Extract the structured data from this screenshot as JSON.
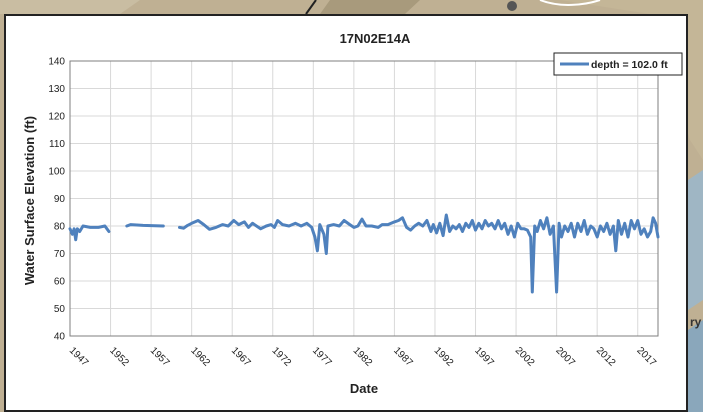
{
  "map_labels": {
    "right_fragment": "ry"
  },
  "chart_data": {
    "type": "line",
    "title": "17N02E14A",
    "xlabel": "Date",
    "ylabel": "Water Surface Elevation (ft)",
    "ylim": [
      40,
      140
    ],
    "y_ticks": [
      "40",
      "50",
      "60",
      "70",
      "80",
      "90",
      "100",
      "110",
      "120",
      "130",
      "140"
    ],
    "xlim": [
      1947,
      2019.5
    ],
    "x_ticks": [
      "1947",
      "1952",
      "1957",
      "1962",
      "1967",
      "1972",
      "1977",
      "1982",
      "1987",
      "1992",
      "1997",
      "2002",
      "2007",
      "2012",
      "2017"
    ],
    "grid": true,
    "legend_position": "top-right",
    "series": [
      {
        "name": "depth = 102.0 ft",
        "color": "#4f81bd",
        "segments": [
          [
            [
              1947.0,
              79
            ],
            [
              1947.3,
              77
            ],
            [
              1947.5,
              79
            ],
            [
              1947.7,
              75
            ],
            [
              1947.9,
              79
            ],
            [
              1948.2,
              78
            ],
            [
              1948.6,
              80
            ],
            [
              1949.5,
              79.5
            ],
            [
              1950.5,
              79.5
            ],
            [
              1951.3,
              80
            ],
            [
              1951.8,
              78
            ]
          ],
          [
            [
              1954.0,
              80
            ],
            [
              1954.5,
              80.5
            ],
            [
              1956.0,
              80.2
            ],
            [
              1958.5,
              80
            ]
          ],
          [
            [
              1960.5,
              79.5
            ],
            [
              1961.0,
              79.2
            ],
            [
              1961.5,
              80.2
            ],
            [
              1962.0,
              81
            ],
            [
              1962.8,
              82
            ],
            [
              1963.5,
              80.5
            ],
            [
              1964.2,
              78.8
            ],
            [
              1965.0,
              79.5
            ],
            [
              1965.8,
              80.5
            ],
            [
              1966.5,
              80
            ],
            [
              1967.2,
              82
            ],
            [
              1967.8,
              80.5
            ],
            [
              1968.5,
              81.5
            ],
            [
              1969.0,
              79.5
            ],
            [
              1969.5,
              81
            ],
            [
              1970.0,
              80
            ],
            [
              1970.5,
              79
            ],
            [
              1971.2,
              80
            ],
            [
              1971.8,
              80.5
            ],
            [
              1972.2,
              79.5
            ],
            [
              1972.6,
              82
            ],
            [
              1973.2,
              80.5
            ],
            [
              1974.0,
              80
            ],
            [
              1974.8,
              81
            ],
            [
              1975.5,
              80
            ],
            [
              1976.2,
              81
            ],
            [
              1976.8,
              79.5
            ],
            [
              1977.2,
              76
            ],
            [
              1977.5,
              71
            ],
            [
              1977.8,
              80.5
            ],
            [
              1978.3,
              77
            ],
            [
              1978.6,
              70
            ],
            [
              1978.8,
              80
            ],
            [
              1979.5,
              80.5
            ],
            [
              1980.2,
              80
            ],
            [
              1980.8,
              82
            ],
            [
              1981.5,
              80.5
            ],
            [
              1982.0,
              79.5
            ],
            [
              1982.5,
              80
            ],
            [
              1983.0,
              82.5
            ],
            [
              1983.5,
              80
            ],
            [
              1984.2,
              80
            ],
            [
              1985.0,
              79.5
            ],
            [
              1985.5,
              80.5
            ],
            [
              1986.2,
              80.5
            ],
            [
              1987.0,
              81.5
            ],
            [
              1987.5,
              82
            ],
            [
              1988.0,
              83
            ],
            [
              1988.5,
              79.5
            ],
            [
              1989.0,
              78.5
            ],
            [
              1989.5,
              80
            ],
            [
              1990.0,
              81
            ],
            [
              1990.5,
              80
            ],
            [
              1991.0,
              82
            ],
            [
              1991.5,
              78
            ],
            [
              1991.8,
              80.5
            ],
            [
              1992.2,
              77.5
            ],
            [
              1992.6,
              81
            ],
            [
              1993.0,
              76.5
            ],
            [
              1993.4,
              84
            ],
            [
              1993.8,
              78
            ],
            [
              1994.2,
              80
            ],
            [
              1994.6,
              79
            ],
            [
              1995.0,
              80.5
            ],
            [
              1995.4,
              78
            ],
            [
              1995.8,
              81
            ],
            [
              1996.2,
              79.5
            ],
            [
              1996.6,
              82
            ],
            [
              1997.0,
              78.5
            ],
            [
              1997.4,
              81
            ],
            [
              1997.8,
              79
            ],
            [
              1998.2,
              82
            ],
            [
              1998.6,
              80
            ],
            [
              1999.0,
              81
            ],
            [
              1999.4,
              79
            ],
            [
              1999.8,
              82
            ],
            [
              2000.2,
              79
            ],
            [
              2000.6,
              81
            ],
            [
              2001.0,
              77
            ],
            [
              2001.4,
              80
            ],
            [
              2001.8,
              76
            ],
            [
              2002.2,
              81
            ],
            [
              2002.6,
              79
            ],
            [
              2003.0,
              79
            ],
            [
              2003.4,
              78.5
            ],
            [
              2003.8,
              76
            ],
            [
              2004.0,
              56
            ],
            [
              2004.3,
              80
            ],
            [
              2004.6,
              78
            ],
            [
              2005.0,
              82
            ],
            [
              2005.4,
              79
            ],
            [
              2005.8,
              83
            ],
            [
              2006.2,
              77
            ],
            [
              2006.6,
              80
            ],
            [
              2007.0,
              56
            ],
            [
              2007.3,
              81
            ],
            [
              2007.6,
              76
            ],
            [
              2008.0,
              80
            ],
            [
              2008.4,
              78
            ],
            [
              2008.8,
              81
            ],
            [
              2009.2,
              76
            ],
            [
              2009.6,
              81
            ],
            [
              2010.0,
              78
            ],
            [
              2010.4,
              82
            ],
            [
              2010.8,
              77
            ],
            [
              2011.2,
              80
            ],
            [
              2011.6,
              79
            ],
            [
              2012.0,
              76
            ],
            [
              2012.4,
              80
            ],
            [
              2012.8,
              78
            ],
            [
              2013.2,
              81
            ],
            [
              2013.6,
              77
            ],
            [
              2014.0,
              80
            ],
            [
              2014.3,
              71
            ],
            [
              2014.6,
              82
            ],
            [
              2015.0,
              77
            ],
            [
              2015.4,
              81
            ],
            [
              2015.8,
              76
            ],
            [
              2016.2,
              82
            ],
            [
              2016.6,
              79
            ],
            [
              2017.0,
              82
            ],
            [
              2017.4,
              77
            ],
            [
              2017.8,
              79
            ],
            [
              2018.2,
              76
            ],
            [
              2018.6,
              78
            ],
            [
              2018.9,
              83
            ],
            [
              2019.2,
              81
            ],
            [
              2019.5,
              76
            ]
          ]
        ]
      }
    ]
  }
}
